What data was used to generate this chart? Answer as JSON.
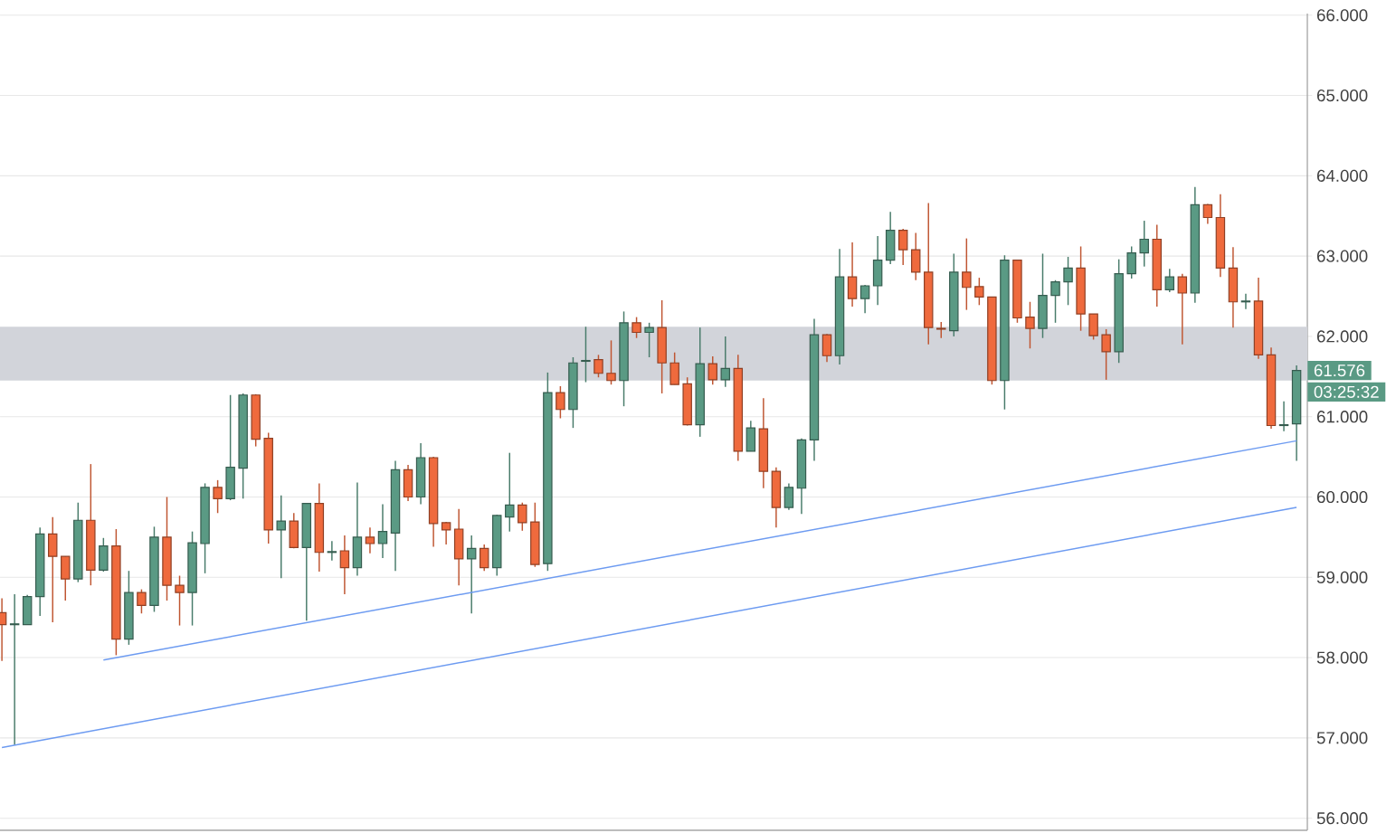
{
  "chart_data": {
    "type": "candlestick",
    "categories": [
      null,
      null,
      null,
      null,
      null,
      null,
      null,
      null,
      null,
      null,
      null,
      null,
      null,
      null,
      null,
      null,
      null,
      null,
      null,
      null,
      null,
      null,
      null,
      null,
      null,
      null,
      null,
      null,
      null,
      null,
      null,
      null,
      null,
      null,
      null,
      null,
      null,
      null,
      null,
      null,
      null,
      null,
      null,
      null,
      null,
      null,
      null,
      null,
      null,
      null,
      null,
      null,
      null,
      null,
      null,
      null,
      null,
      null,
      null,
      null,
      null,
      null,
      null,
      null,
      null,
      null,
      null,
      null,
      null,
      null,
      null,
      null,
      null,
      null,
      null,
      null,
      null,
      null,
      null,
      null,
      null,
      null,
      null,
      null,
      null,
      null,
      null,
      null,
      null,
      null,
      null,
      null,
      null,
      null,
      null,
      null,
      null,
      null,
      null,
      null,
      null,
      null,
      null
    ],
    "series": [
      {
        "ohlc": [
          [
            58.56,
            58.74,
            57.96,
            58.41
          ],
          [
            58.41,
            58.79,
            56.91,
            58.42
          ],
          [
            58.41,
            58.78,
            58.41,
            58.76
          ],
          [
            58.76,
            59.62,
            58.52,
            59.54
          ],
          [
            59.54,
            59.75,
            58.44,
            59.26
          ],
          [
            59.26,
            59.26,
            58.71,
            58.98
          ],
          [
            58.98,
            59.93,
            58.94,
            59.71
          ],
          [
            59.71,
            60.41,
            58.9,
            59.09
          ],
          [
            59.09,
            59.49,
            59.07,
            59.39
          ],
          [
            59.39,
            59.6,
            58.03,
            58.23
          ],
          [
            58.23,
            59.08,
            58.16,
            58.81
          ],
          [
            58.81,
            58.85,
            58.55,
            58.65
          ],
          [
            58.65,
            59.63,
            58.57,
            59.5
          ],
          [
            59.5,
            60.0,
            58.71,
            58.9
          ],
          [
            58.9,
            59.02,
            58.4,
            58.81
          ],
          [
            58.81,
            59.57,
            58.4,
            59.43
          ],
          [
            59.42,
            60.17,
            59.05,
            60.12
          ],
          [
            60.12,
            60.21,
            59.8,
            59.98
          ],
          [
            59.98,
            61.27,
            59.96,
            60.37
          ],
          [
            60.36,
            61.29,
            59.98,
            61.27
          ],
          [
            61.27,
            61.28,
            60.63,
            60.72
          ],
          [
            60.73,
            60.8,
            59.42,
            59.59
          ],
          [
            59.59,
            60.02,
            58.99,
            59.7
          ],
          [
            59.7,
            59.8,
            59.36,
            59.37
          ],
          [
            59.37,
            59.92,
            58.46,
            59.92
          ],
          [
            59.92,
            60.17,
            59.07,
            59.31
          ],
          [
            59.31,
            59.45,
            59.21,
            59.32
          ],
          [
            59.33,
            59.52,
            58.79,
            59.12
          ],
          [
            59.12,
            60.18,
            59.02,
            59.5
          ],
          [
            59.5,
            59.62,
            59.3,
            59.42
          ],
          [
            59.42,
            59.91,
            59.24,
            59.57
          ],
          [
            59.55,
            60.45,
            59.08,
            60.34
          ],
          [
            60.34,
            60.4,
            59.95,
            60.0
          ],
          [
            60.0,
            60.67,
            59.91,
            60.49
          ],
          [
            60.49,
            60.5,
            59.38,
            59.67
          ],
          [
            59.68,
            59.69,
            59.41,
            59.59
          ],
          [
            59.6,
            59.85,
            58.9,
            59.23
          ],
          [
            59.23,
            59.52,
            58.55,
            59.36
          ],
          [
            59.36,
            59.41,
            59.08,
            59.12
          ],
          [
            59.12,
            59.78,
            59.02,
            59.77
          ],
          [
            59.75,
            60.55,
            59.57,
            59.9
          ],
          [
            59.9,
            59.93,
            59.58,
            59.68
          ],
          [
            59.69,
            59.93,
            59.13,
            59.16
          ],
          [
            59.17,
            61.55,
            59.08,
            61.3
          ],
          [
            61.3,
            61.38,
            60.98,
            61.09
          ],
          [
            61.09,
            61.74,
            60.86,
            61.67
          ],
          [
            61.69,
            62.12,
            61.43,
            61.7
          ],
          [
            61.71,
            61.77,
            61.49,
            61.54
          ],
          [
            61.54,
            61.95,
            61.4,
            61.45
          ],
          [
            61.45,
            62.31,
            61.13,
            62.17
          ],
          [
            62.17,
            62.24,
            61.98,
            62.05
          ],
          [
            62.05,
            62.17,
            61.74,
            62.11
          ],
          [
            62.11,
            62.45,
            61.29,
            61.67
          ],
          [
            61.67,
            61.8,
            61.4,
            61.4
          ],
          [
            61.41,
            61.49,
            60.89,
            60.9
          ],
          [
            60.9,
            62.11,
            60.75,
            61.66
          ],
          [
            61.66,
            61.75,
            61.4,
            61.46
          ],
          [
            61.46,
            62.0,
            61.37,
            61.6
          ],
          [
            61.6,
            61.77,
            60.45,
            60.57
          ],
          [
            60.57,
            60.95,
            60.57,
            60.86
          ],
          [
            60.85,
            61.23,
            60.11,
            60.32
          ],
          [
            60.32,
            60.37,
            59.62,
            59.87
          ],
          [
            59.87,
            60.17,
            59.84,
            60.12
          ],
          [
            60.11,
            60.73,
            59.79,
            60.71
          ],
          [
            60.71,
            62.22,
            60.45,
            62.02
          ],
          [
            62.02,
            62.03,
            61.68,
            61.76
          ],
          [
            61.76,
            63.09,
            61.65,
            62.74
          ],
          [
            62.74,
            63.17,
            62.37,
            62.47
          ],
          [
            62.47,
            62.64,
            62.29,
            62.63
          ],
          [
            62.63,
            63.25,
            62.39,
            62.95
          ],
          [
            62.95,
            63.55,
            62.9,
            63.32
          ],
          [
            63.32,
            63.34,
            62.89,
            63.08
          ],
          [
            63.08,
            63.29,
            62.7,
            62.8
          ],
          [
            62.8,
            63.66,
            61.9,
            62.11
          ],
          [
            62.1,
            62.18,
            61.98,
            62.09
          ],
          [
            62.07,
            63.03,
            62.0,
            62.8
          ],
          [
            62.8,
            63.22,
            62.33,
            62.61
          ],
          [
            62.62,
            62.73,
            62.39,
            62.49
          ],
          [
            62.49,
            62.49,
            61.4,
            61.45
          ],
          [
            61.45,
            63.01,
            61.09,
            62.95
          ],
          [
            62.95,
            62.95,
            62.17,
            62.23
          ],
          [
            62.24,
            62.43,
            61.85,
            62.1
          ],
          [
            62.1,
            63.03,
            61.98,
            62.51
          ],
          [
            62.51,
            62.7,
            62.17,
            62.68
          ],
          [
            62.68,
            62.99,
            62.39,
            62.85
          ],
          [
            62.85,
            63.12,
            62.07,
            62.28
          ],
          [
            62.28,
            62.28,
            61.96,
            62.01
          ],
          [
            62.02,
            62.09,
            61.46,
            61.81
          ],
          [
            61.81,
            62.96,
            61.67,
            62.78
          ],
          [
            62.78,
            63.12,
            62.72,
            63.04
          ],
          [
            63.04,
            63.44,
            62.87,
            63.21
          ],
          [
            63.21,
            63.39,
            62.37,
            62.58
          ],
          [
            62.58,
            62.84,
            62.55,
            62.74
          ],
          [
            62.74,
            62.78,
            61.9,
            62.54
          ],
          [
            62.54,
            63.86,
            62.42,
            63.64
          ],
          [
            63.64,
            63.65,
            63.4,
            63.48
          ],
          [
            63.48,
            63.77,
            62.74,
            62.85
          ],
          [
            62.85,
            63.11,
            62.11,
            62.43
          ],
          [
            62.43,
            62.53,
            62.34,
            62.44
          ],
          [
            62.44,
            62.73,
            61.72,
            61.77
          ],
          [
            61.77,
            61.86,
            60.85,
            60.89
          ],
          [
            60.89,
            61.19,
            60.82,
            60.9
          ],
          [
            60.91,
            61.64,
            60.45,
            61.576
          ]
        ],
        "colors": [
          "#ef6a3d",
          "#5a9a84",
          "#5a9a84",
          "#5a9a84",
          "#ef6a3d",
          "#ef6a3d",
          "#5a9a84",
          "#ef6a3d",
          "#5a9a84",
          "#ef6a3d",
          "#5a9a84",
          "#ef6a3d",
          "#5a9a84",
          "#ef6a3d",
          "#ef6a3d",
          "#5a9a84",
          "#5a9a84",
          "#ef6a3d",
          "#5a9a84",
          "#5a9a84",
          "#ef6a3d",
          "#ef6a3d",
          "#5a9a84",
          "#ef6a3d",
          "#5a9a84",
          "#ef6a3d",
          "#5a9a84",
          "#ef6a3d",
          "#5a9a84",
          "#ef6a3d",
          "#5a9a84",
          "#5a9a84",
          "#ef6a3d",
          "#5a9a84",
          "#ef6a3d",
          "#ef6a3d",
          "#ef6a3d",
          "#5a9a84",
          "#ef6a3d",
          "#5a9a84",
          "#5a9a84",
          "#ef6a3d",
          "#ef6a3d",
          "#5a9a84",
          "#ef6a3d",
          "#5a9a84",
          "#5a9a84",
          "#ef6a3d",
          "#ef6a3d",
          "#5a9a84",
          "#ef6a3d",
          "#5a9a84",
          "#ef6a3d",
          "#ef6a3d",
          "#ef6a3d",
          "#5a9a84",
          "#ef6a3d",
          "#5a9a84",
          "#ef6a3d",
          "#5a9a84",
          "#ef6a3d",
          "#ef6a3d",
          "#5a9a84",
          "#5a9a84",
          "#5a9a84",
          "#ef6a3d",
          "#5a9a84",
          "#ef6a3d",
          "#5a9a84",
          "#5a9a84",
          "#5a9a84",
          "#ef6a3d",
          "#ef6a3d",
          "#ef6a3d",
          "#ef6a3d",
          "#5a9a84",
          "#ef6a3d",
          "#ef6a3d",
          "#ef6a3d",
          "#5a9a84",
          "#ef6a3d",
          "#ef6a3d",
          "#5a9a84",
          "#5a9a84",
          "#5a9a84",
          "#ef6a3d",
          "#ef6a3d",
          "#ef6a3d",
          "#5a9a84",
          "#5a9a84",
          "#5a9a84",
          "#ef6a3d",
          "#5a9a84",
          "#ef6a3d",
          "#5a9a84",
          "#ef6a3d",
          "#ef6a3d",
          "#ef6a3d",
          "#5a9a84",
          "#ef6a3d",
          "#ef6a3d",
          "#5a9a84",
          "#5a9a84"
        ]
      },
      {
        "type": "line",
        "color": "#6d9bf1",
        "values": [
          null,
          null,
          null,
          null,
          null,
          null,
          null,
          null,
          57.97,
          null,
          null,
          null,
          null,
          null,
          null,
          null,
          null,
          null,
          null,
          null,
          null,
          null,
          null,
          null,
          null,
          null,
          null,
          null,
          null,
          null,
          null,
          null,
          null,
          null,
          null,
          null,
          null,
          null,
          null,
          null,
          null,
          null,
          null,
          null,
          null,
          null,
          null,
          null,
          null,
          null,
          null,
          null,
          null,
          null,
          null,
          null,
          null,
          null,
          null,
          null,
          null,
          null,
          null,
          null,
          null,
          null,
          null,
          null,
          null,
          null,
          null,
          null,
          null,
          null,
          null,
          null,
          null,
          null,
          null,
          null,
          null,
          null,
          null,
          null,
          null,
          null,
          null,
          null,
          null,
          null,
          null,
          null,
          null,
          null,
          null,
          null,
          null,
          null,
          null,
          null,
          null,
          null,
          60.7
        ]
      },
      {
        "type": "line",
        "color": "#6d9bf1",
        "values": [
          56.88,
          null,
          null,
          null,
          null,
          null,
          null,
          null,
          null,
          null,
          null,
          null,
          null,
          null,
          null,
          null,
          null,
          null,
          null,
          null,
          null,
          null,
          null,
          null,
          null,
          null,
          null,
          null,
          null,
          null,
          null,
          null,
          null,
          null,
          null,
          null,
          null,
          null,
          null,
          null,
          null,
          null,
          null,
          null,
          null,
          null,
          null,
          null,
          null,
          null,
          null,
          null,
          null,
          null,
          null,
          null,
          null,
          null,
          null,
          null,
          null,
          null,
          null,
          null,
          null,
          null,
          null,
          null,
          null,
          null,
          null,
          null,
          null,
          null,
          null,
          null,
          null,
          null,
          null,
          null,
          null,
          null,
          null,
          null,
          null,
          null,
          null,
          null,
          null,
          null,
          null,
          null,
          null,
          null,
          null,
          null,
          null,
          null,
          null,
          null,
          null,
          null,
          59.87
        ]
      }
    ],
    "ylim": [
      55.85,
      66.02
    ],
    "yticks": [
      {
        "value": 56,
        "label": "56.000"
      },
      {
        "value": 57,
        "label": "57.000"
      },
      {
        "value": 58,
        "label": "58.000"
      },
      {
        "value": 59,
        "label": "59.000"
      },
      {
        "value": 60,
        "label": "60.000"
      },
      {
        "value": 61,
        "label": "61.000"
      },
      {
        "value": 62,
        "label": "62.000"
      },
      {
        "value": 63,
        "label": "63.000"
      },
      {
        "value": 64,
        "label": "64.000"
      },
      {
        "value": 65,
        "label": "65.000"
      },
      {
        "value": 66,
        "label": "66.000"
      }
    ],
    "grid": "y",
    "bands": [
      {
        "axis": "y",
        "from": 61.45,
        "to": 62.12,
        "color": "#d2d4da"
      }
    ],
    "annotations": [
      "61.576",
      "03:25:32"
    ]
  }
}
